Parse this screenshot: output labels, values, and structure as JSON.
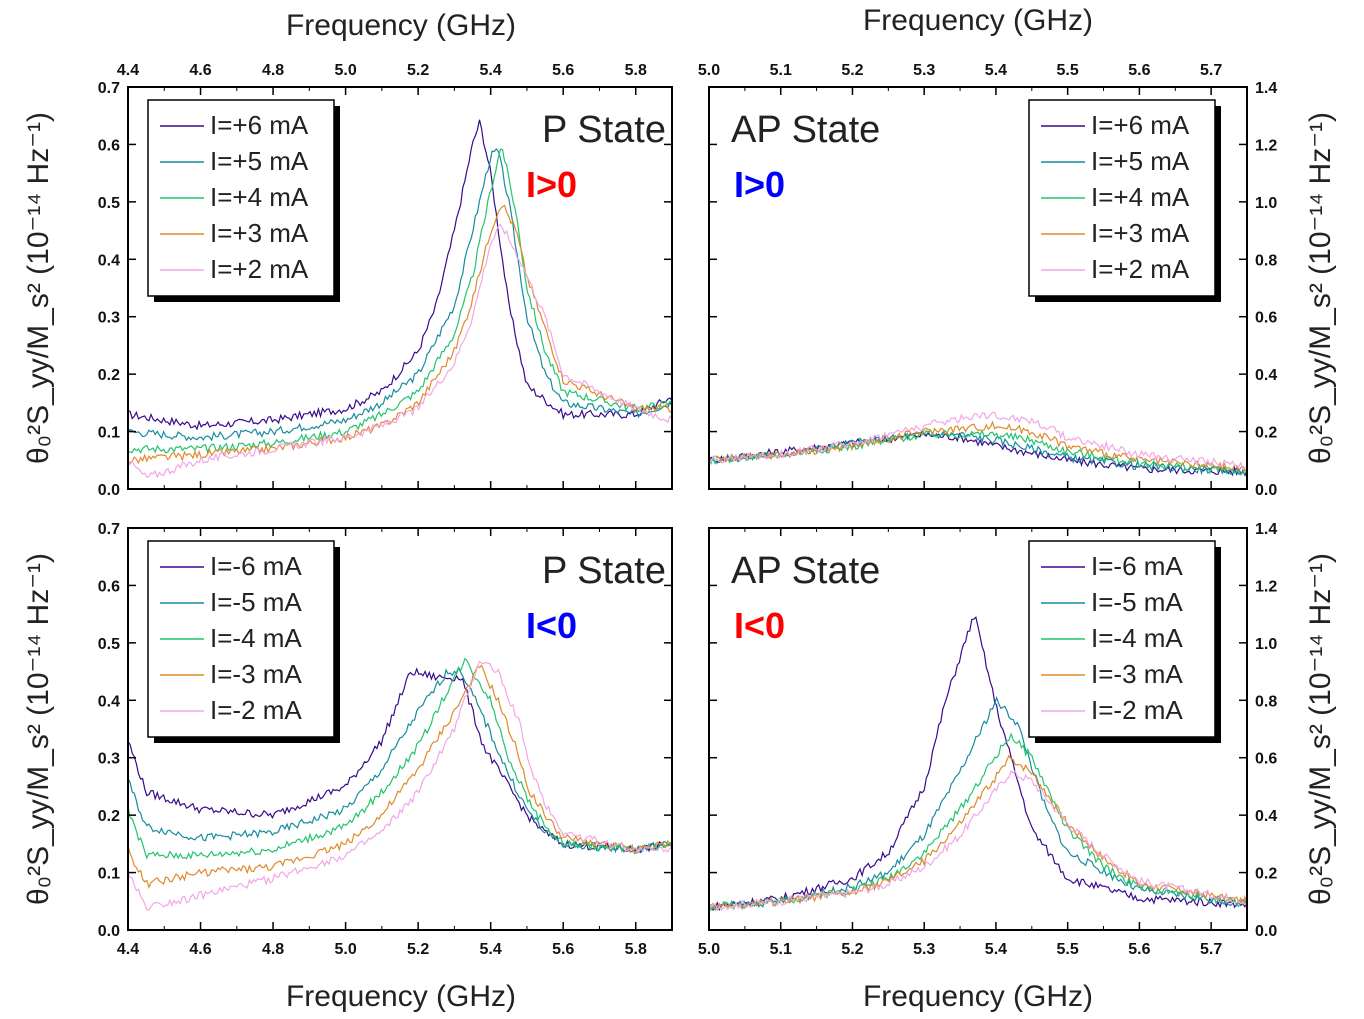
{
  "colors": {
    "I6": "#3a0a8c",
    "I5": "#178c9e",
    "I4": "#23c46e",
    "I3": "#e08a2a",
    "I2": "#f2a6e8",
    "red": "#ff0000",
    "blue": "#0000ff"
  },
  "axis_titles": {
    "x_top": "Frequency (GHz)",
    "x_bottom": "Frequency (GHz)",
    "y_left": "θ₀²S_yy/M_s² (10⁻¹⁴ Hz⁻¹)",
    "y_right": "θ₀²S_yy/M_s² (10⁻¹⁴ Hz⁻¹)"
  },
  "chart_data": [
    {
      "id": "top-left",
      "type": "line",
      "state_label": "P State",
      "condition_label": "I>0",
      "condition_color": "#ff0000",
      "xlim": [
        4.4,
        5.9
      ],
      "ylim": [
        0.0,
        0.7
      ],
      "xticks": [
        "4.4",
        "4.6",
        "4.8",
        "5.0",
        "5.2",
        "5.4",
        "5.6",
        "5.8"
      ],
      "yticks": [
        "0.0",
        "0.1",
        "0.2",
        "0.3",
        "0.4",
        "0.5",
        "0.6",
        "0.7"
      ],
      "legend_position": "top-left",
      "series": [
        {
          "name": "I=+6 mA",
          "color_key": "I6",
          "x": [
            4.4,
            4.6,
            4.8,
            5.0,
            5.1,
            5.2,
            5.25,
            5.3,
            5.35,
            5.37,
            5.4,
            5.45,
            5.5,
            5.6,
            5.8,
            5.9
          ],
          "y": [
            0.13,
            0.11,
            0.12,
            0.14,
            0.17,
            0.24,
            0.32,
            0.45,
            0.6,
            0.64,
            0.55,
            0.32,
            0.18,
            0.13,
            0.13,
            0.16
          ]
        },
        {
          "name": "I=+5 mA",
          "color_key": "I5",
          "x": [
            4.4,
            4.6,
            4.8,
            5.0,
            5.1,
            5.2,
            5.3,
            5.35,
            5.4,
            5.42,
            5.45,
            5.5,
            5.55,
            5.6,
            5.8,
            5.9
          ],
          "y": [
            0.1,
            0.09,
            0.1,
            0.12,
            0.15,
            0.2,
            0.32,
            0.45,
            0.58,
            0.59,
            0.5,
            0.3,
            0.2,
            0.15,
            0.13,
            0.15
          ]
        },
        {
          "name": "I=+4 mA",
          "color_key": "I4",
          "x": [
            4.4,
            4.6,
            4.8,
            5.0,
            5.1,
            5.2,
            5.3,
            5.35,
            5.4,
            5.43,
            5.47,
            5.5,
            5.55,
            5.6,
            5.8,
            5.9
          ],
          "y": [
            0.07,
            0.07,
            0.08,
            0.1,
            0.13,
            0.17,
            0.27,
            0.37,
            0.52,
            0.6,
            0.48,
            0.35,
            0.24,
            0.17,
            0.14,
            0.15
          ]
        },
        {
          "name": "I=+3 mA",
          "color_key": "I3",
          "x": [
            4.4,
            4.6,
            4.8,
            5.0,
            5.1,
            5.2,
            5.3,
            5.35,
            5.4,
            5.43,
            5.47,
            5.5,
            5.55,
            5.6,
            5.8,
            5.9
          ],
          "y": [
            0.05,
            0.06,
            0.07,
            0.09,
            0.11,
            0.15,
            0.24,
            0.33,
            0.45,
            0.5,
            0.45,
            0.37,
            0.28,
            0.19,
            0.14,
            0.14
          ]
        },
        {
          "name": "I=+2 mA",
          "color_key": "I2",
          "x": [
            4.4,
            4.45,
            4.6,
            4.8,
            5.0,
            5.1,
            5.2,
            5.3,
            5.35,
            5.4,
            5.43,
            5.48,
            5.55,
            5.6,
            5.8,
            5.9
          ],
          "y": [
            0.05,
            0.02,
            0.05,
            0.07,
            0.09,
            0.11,
            0.14,
            0.22,
            0.3,
            0.43,
            0.46,
            0.4,
            0.3,
            0.2,
            0.14,
            0.12
          ]
        }
      ]
    },
    {
      "id": "top-right",
      "type": "line",
      "state_label": "AP State",
      "condition_label": "I>0",
      "condition_color": "#0000ff",
      "xlim": [
        5.0,
        5.75
      ],
      "ylim": [
        0.0,
        1.4
      ],
      "xticks": [
        "5.0",
        "5.1",
        "5.2",
        "5.3",
        "5.4",
        "5.5",
        "5.6",
        "5.7"
      ],
      "yticks": [
        "0.0",
        "0.2",
        "0.4",
        "0.6",
        "0.8",
        "1.0",
        "1.2",
        "1.4"
      ],
      "legend_position": "top-right",
      "series": [
        {
          "name": "I=+6 mA",
          "color_key": "I6",
          "x": [
            5.0,
            5.1,
            5.2,
            5.3,
            5.35,
            5.4,
            5.5,
            5.6,
            5.75
          ],
          "y": [
            0.1,
            0.13,
            0.16,
            0.19,
            0.18,
            0.15,
            0.1,
            0.07,
            0.06
          ]
        },
        {
          "name": "I=+5 mA",
          "color_key": "I5",
          "x": [
            5.0,
            5.1,
            5.2,
            5.3,
            5.35,
            5.4,
            5.5,
            5.6,
            5.75
          ],
          "y": [
            0.1,
            0.12,
            0.16,
            0.19,
            0.19,
            0.17,
            0.11,
            0.08,
            0.06
          ]
        },
        {
          "name": "I=+4 mA",
          "color_key": "I4",
          "x": [
            5.0,
            5.1,
            5.2,
            5.3,
            5.4,
            5.45,
            5.5,
            5.6,
            5.75
          ],
          "y": [
            0.1,
            0.12,
            0.15,
            0.19,
            0.19,
            0.17,
            0.13,
            0.09,
            0.06
          ]
        },
        {
          "name": "I=+3 mA",
          "color_key": "I3",
          "x": [
            5.0,
            5.1,
            5.2,
            5.3,
            5.4,
            5.45,
            5.5,
            5.6,
            5.75
          ],
          "y": [
            0.1,
            0.12,
            0.15,
            0.2,
            0.22,
            0.2,
            0.15,
            0.1,
            0.07
          ]
        },
        {
          "name": "I=+2 mA",
          "color_key": "I2",
          "x": [
            5.0,
            5.1,
            5.2,
            5.3,
            5.38,
            5.45,
            5.5,
            5.6,
            5.75
          ],
          "y": [
            0.1,
            0.12,
            0.16,
            0.22,
            0.26,
            0.24,
            0.18,
            0.12,
            0.08
          ]
        }
      ]
    },
    {
      "id": "bottom-left",
      "type": "line",
      "state_label": "P State",
      "condition_label": "I<0",
      "condition_color": "#0000ff",
      "xlim": [
        4.4,
        5.9
      ],
      "ylim": [
        0.0,
        0.7
      ],
      "xticks": [
        "4.4",
        "4.6",
        "4.8",
        "5.0",
        "5.2",
        "5.4",
        "5.6",
        "5.8"
      ],
      "yticks": [
        "0.0",
        "0.1",
        "0.2",
        "0.3",
        "0.4",
        "0.5",
        "0.6",
        "0.7"
      ],
      "legend_position": "top-left",
      "series": [
        {
          "name": "I=-6 mA",
          "color_key": "I6",
          "x": [
            4.4,
            4.45,
            4.6,
            4.8,
            5.0,
            5.1,
            5.18,
            5.25,
            5.32,
            5.38,
            5.45,
            5.5,
            5.55,
            5.6,
            5.8,
            5.9
          ],
          "y": [
            0.33,
            0.24,
            0.21,
            0.2,
            0.25,
            0.33,
            0.45,
            0.44,
            0.44,
            0.32,
            0.25,
            0.2,
            0.17,
            0.15,
            0.14,
            0.15
          ]
        },
        {
          "name": "I=-5 mA",
          "color_key": "I5",
          "x": [
            4.4,
            4.45,
            4.6,
            4.8,
            5.0,
            5.1,
            5.2,
            5.28,
            5.32,
            5.38,
            5.45,
            5.5,
            5.55,
            5.6,
            5.8,
            5.9
          ],
          "y": [
            0.26,
            0.18,
            0.16,
            0.17,
            0.21,
            0.28,
            0.38,
            0.45,
            0.45,
            0.37,
            0.27,
            0.21,
            0.17,
            0.15,
            0.14,
            0.15
          ]
        },
        {
          "name": "I=-4 mA",
          "color_key": "I4",
          "x": [
            4.4,
            4.45,
            4.6,
            4.8,
            5.0,
            5.1,
            5.2,
            5.3,
            5.33,
            5.4,
            5.45,
            5.5,
            5.55,
            5.6,
            5.8,
            5.9
          ],
          "y": [
            0.21,
            0.13,
            0.13,
            0.14,
            0.18,
            0.24,
            0.32,
            0.44,
            0.47,
            0.4,
            0.3,
            0.23,
            0.18,
            0.15,
            0.14,
            0.15
          ]
        },
        {
          "name": "I=-3 mA",
          "color_key": "I3",
          "x": [
            4.4,
            4.45,
            4.6,
            4.8,
            5.0,
            5.1,
            5.2,
            5.3,
            5.37,
            5.42,
            5.48,
            5.5,
            5.55,
            5.6,
            5.8,
            5.9
          ],
          "y": [
            0.14,
            0.08,
            0.1,
            0.11,
            0.15,
            0.2,
            0.28,
            0.38,
            0.46,
            0.4,
            0.3,
            0.25,
            0.2,
            0.16,
            0.14,
            0.15
          ]
        },
        {
          "name": "I=-2 mA",
          "color_key": "I2",
          "x": [
            4.4,
            4.45,
            4.6,
            4.8,
            5.0,
            5.1,
            5.2,
            5.3,
            5.37,
            5.42,
            5.48,
            5.5,
            5.55,
            5.6,
            5.8,
            5.9
          ],
          "y": [
            0.1,
            0.04,
            0.06,
            0.09,
            0.13,
            0.17,
            0.24,
            0.35,
            0.47,
            0.45,
            0.36,
            0.3,
            0.22,
            0.17,
            0.14,
            0.14
          ]
        }
      ]
    },
    {
      "id": "bottom-right",
      "type": "line",
      "state_label": "AP State",
      "condition_label": "I<0",
      "condition_color": "#ff0000",
      "xlim": [
        5.0,
        5.75
      ],
      "ylim": [
        0.0,
        1.4
      ],
      "xticks": [
        "5.0",
        "5.1",
        "5.2",
        "5.3",
        "5.4",
        "5.5",
        "5.6",
        "5.7"
      ],
      "yticks": [
        "0.0",
        "0.2",
        "0.4",
        "0.6",
        "0.8",
        "1.0",
        "1.2",
        "1.4"
      ],
      "legend_position": "top-right",
      "series": [
        {
          "name": "I=-6 mA",
          "color_key": "I6",
          "x": [
            5.0,
            5.1,
            5.2,
            5.25,
            5.3,
            5.33,
            5.37,
            5.4,
            5.45,
            5.5,
            5.6,
            5.75
          ],
          "y": [
            0.08,
            0.11,
            0.18,
            0.27,
            0.5,
            0.8,
            1.1,
            0.78,
            0.35,
            0.18,
            0.11,
            0.09
          ]
        },
        {
          "name": "I=-5 mA",
          "color_key": "I5",
          "x": [
            5.0,
            5.1,
            5.2,
            5.25,
            5.3,
            5.35,
            5.4,
            5.43,
            5.47,
            5.5,
            5.6,
            5.75
          ],
          "y": [
            0.08,
            0.1,
            0.15,
            0.2,
            0.33,
            0.55,
            0.8,
            0.72,
            0.42,
            0.27,
            0.14,
            0.09
          ]
        },
        {
          "name": "I=-4 mA",
          "color_key": "I4",
          "x": [
            5.0,
            5.1,
            5.2,
            5.25,
            5.3,
            5.35,
            5.42,
            5.45,
            5.5,
            5.55,
            5.6,
            5.75
          ],
          "y": [
            0.08,
            0.1,
            0.14,
            0.18,
            0.27,
            0.42,
            0.68,
            0.6,
            0.35,
            0.22,
            0.15,
            0.09
          ]
        },
        {
          "name": "I=-3 mA",
          "color_key": "I3",
          "x": [
            5.0,
            5.1,
            5.2,
            5.25,
            5.3,
            5.35,
            5.42,
            5.45,
            5.5,
            5.55,
            5.6,
            5.75
          ],
          "y": [
            0.08,
            0.1,
            0.13,
            0.17,
            0.24,
            0.37,
            0.6,
            0.55,
            0.37,
            0.25,
            0.16,
            0.1
          ]
        },
        {
          "name": "I=-2 mA",
          "color_key": "I2",
          "x": [
            5.0,
            5.1,
            5.2,
            5.25,
            5.3,
            5.35,
            5.42,
            5.45,
            5.5,
            5.55,
            5.6,
            5.75
          ],
          "y": [
            0.08,
            0.1,
            0.13,
            0.16,
            0.22,
            0.33,
            0.55,
            0.52,
            0.37,
            0.26,
            0.17,
            0.1
          ]
        }
      ]
    }
  ]
}
